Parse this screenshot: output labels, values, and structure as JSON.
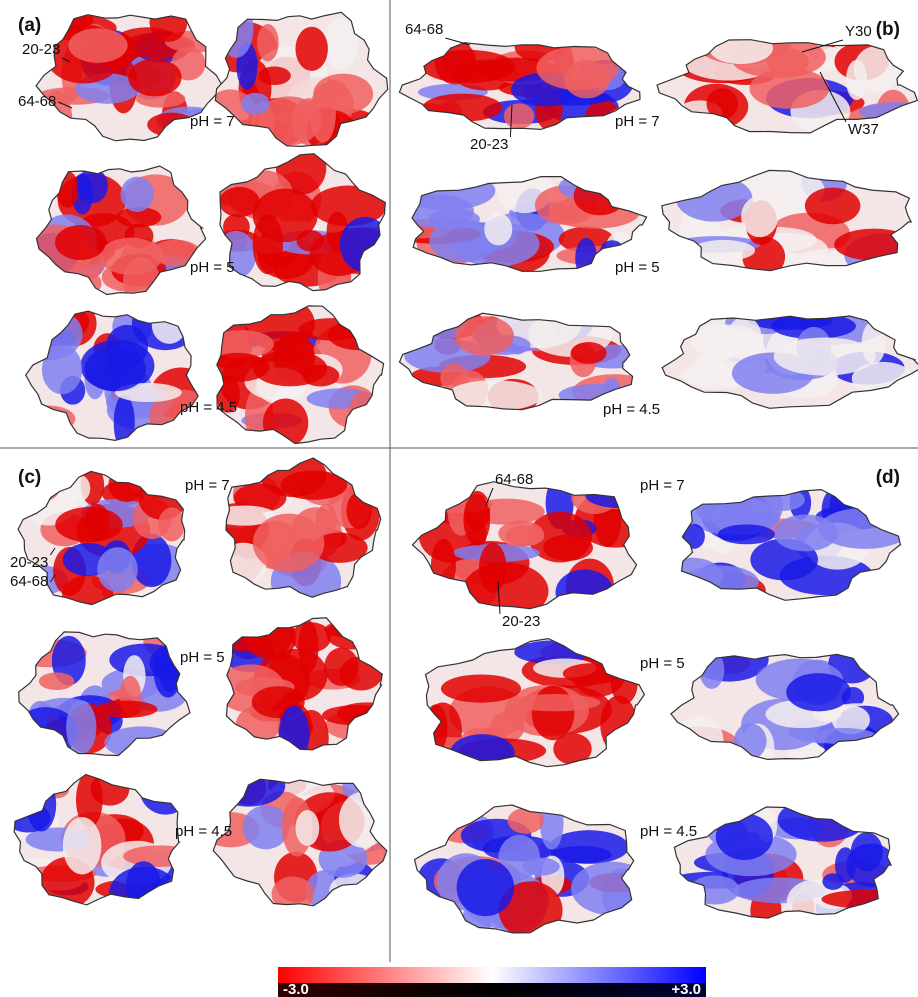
{
  "panels": [
    {
      "label": "(a)",
      "ph_labels": [
        "pH = 7",
        "pH = 5",
        "pH = 4.5"
      ],
      "annotations": [
        "20-23",
        "64-68"
      ]
    },
    {
      "label": "(b)",
      "ph_labels": [
        "pH = 7",
        "pH = 5",
        "pH = 4.5"
      ],
      "annotations": [
        "64-68",
        "20-23",
        "Y30",
        "W37"
      ]
    },
    {
      "label": "(c)",
      "ph_labels": [
        "pH = 7",
        "pH = 5",
        "pH = 4.5"
      ],
      "annotations": [
        "20-23",
        "64-68"
      ]
    },
    {
      "label": "(d)",
      "ph_labels": [
        "pH = 7",
        "pH = 5",
        "pH = 4.5"
      ],
      "annotations": [
        "64-68",
        "20-23"
      ]
    }
  ],
  "colorbar": {
    "min_label": "-3.0",
    "max_label": "+3.0"
  }
}
